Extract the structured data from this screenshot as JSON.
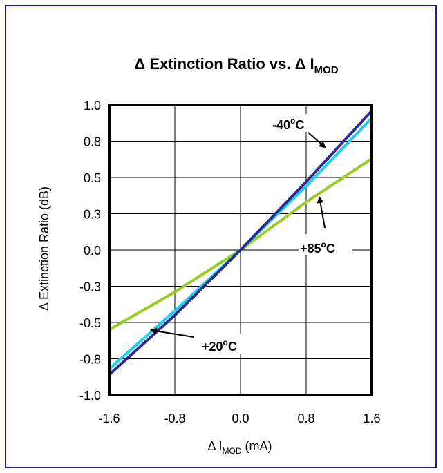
{
  "chart_data": {
    "type": "line",
    "title": {
      "prefix": "Δ Extinction Ratio vs. Δ I",
      "subscript": "MOD"
    },
    "xlabel": {
      "prefix": "Δ I",
      "subscript": "MOD",
      "suffix": " (mA)"
    },
    "ylabel": "Δ Extinction Ratio (dB)",
    "xlim": [
      -1.6,
      1.6
    ],
    "ylim": [
      -1.0,
      1.0
    ],
    "x_ticks": [
      -1.6,
      -0.8,
      0.0,
      0.8,
      1.6
    ],
    "x_tick_labels": [
      "-1.6",
      "-0.8",
      "0.0",
      "0.8",
      "1.6"
    ],
    "y_ticks": [
      -1.0,
      -0.75,
      -0.5,
      -0.25,
      0.0,
      0.25,
      0.5,
      0.75,
      1.0
    ],
    "y_tick_labels": [
      "-1.0",
      "-0.8",
      "-0.5",
      "-0.3",
      "0.0",
      "0.3",
      "0.5",
      "0.8",
      "1.0"
    ],
    "grid": true,
    "series": [
      {
        "name": "+85°C",
        "color": "#99cc22",
        "x": [
          -1.6,
          -0.8,
          0.0,
          0.8,
          1.6
        ],
        "y": [
          -0.55,
          -0.29,
          0.0,
          0.33,
          0.63
        ]
      },
      {
        "name": "+20°C",
        "color": "#22ccee",
        "x": [
          -1.6,
          -0.8,
          0.0,
          0.8,
          1.6
        ],
        "y": [
          -0.82,
          -0.42,
          0.0,
          0.44,
          0.91
        ]
      },
      {
        "name": "-40°C",
        "color": "#2b2b8c",
        "x": [
          -1.6,
          -0.8,
          0.0,
          0.8,
          1.6
        ],
        "y": [
          -0.86,
          -0.45,
          0.0,
          0.47,
          0.96
        ]
      }
    ],
    "annotations": [
      {
        "series": "-40°C",
        "base": "-40",
        "sup": "o",
        "unit": "C"
      },
      {
        "series": "+85°C",
        "base": "+85",
        "sup": "o",
        "unit": "C"
      },
      {
        "series": "+20°C",
        "base": "+20",
        "sup": "o",
        "unit": "C"
      }
    ],
    "frame_color": "#1c1c8a"
  }
}
